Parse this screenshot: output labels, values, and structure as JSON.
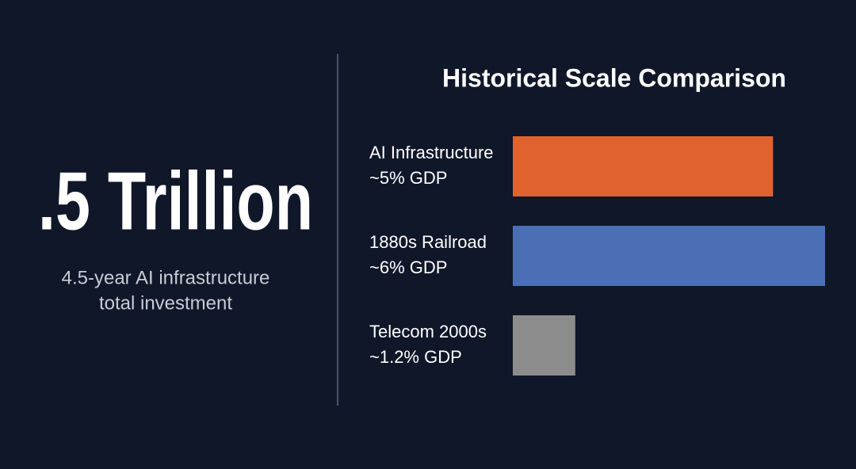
{
  "headline": {
    "figure": ".5 Trillion",
    "caption": [
      "4.5-year AI infrastructure",
      "total investment"
    ]
  },
  "chart_data": {
    "type": "hbar",
    "title": "Historical Scale Comparison",
    "categories": [
      "AI Infrastructure",
      "1880s Railroad",
      "Telecom 2000s"
    ],
    "values": [
      5,
      6,
      1.2
    ],
    "value_labels": [
      "~5% GDP",
      "~6% GDP",
      "~1.2% GDP"
    ],
    "colors": [
      "#e0622f",
      "#4a6fb5",
      "#8c8c8c"
    ]
  }
}
